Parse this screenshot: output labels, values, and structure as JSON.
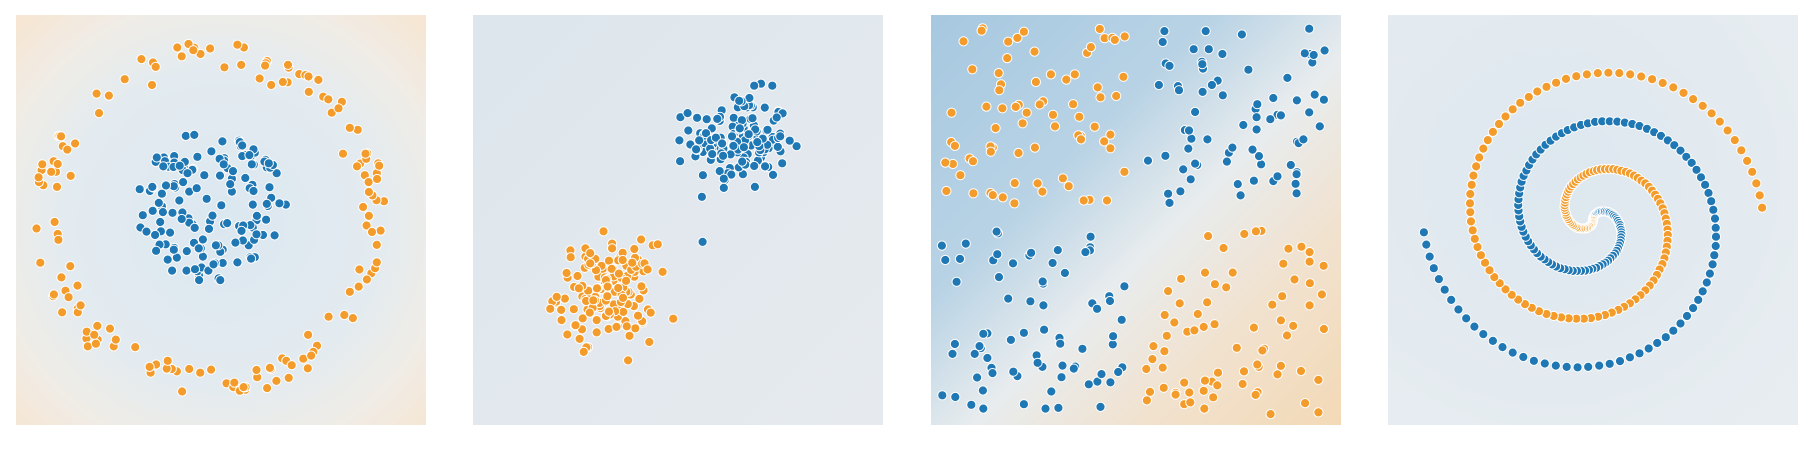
{
  "colors": {
    "class_a": "#1f77b4",
    "class_b": "#f39c2b",
    "region_a": "#a9c9e0",
    "region_b": "#f3d9b8",
    "region_neutral": "#e8edf1"
  },
  "chart_data": [
    {
      "type": "scatter",
      "dataset": "circle",
      "xlim": [
        -6,
        6
      ],
      "ylim": [
        -6,
        6
      ],
      "grid": false,
      "legend": "none",
      "series": [
        {
          "color": "#1f77b4",
          "points": []
        },
        {
          "color": "#f39c2b",
          "points": []
        }
      ]
    },
    {
      "type": "scatter",
      "dataset": "gaussian",
      "xlim": [
        -6,
        6
      ],
      "ylim": [
        -6,
        6
      ],
      "grid": false,
      "legend": "none",
      "series": [
        {
          "color": "#1f77b4",
          "points": []
        },
        {
          "color": "#f39c2b",
          "points": []
        }
      ]
    },
    {
      "type": "scatter",
      "dataset": "xor",
      "xlim": [
        -6,
        6
      ],
      "ylim": [
        -6,
        6
      ],
      "grid": false,
      "legend": "none",
      "series": [
        {
          "color": "#1f77b4",
          "points": []
        },
        {
          "color": "#f39c2b",
          "points": []
        }
      ]
    },
    {
      "type": "scatter",
      "dataset": "spiral",
      "xlim": [
        -6,
        6
      ],
      "ylim": [
        -6,
        6
      ],
      "grid": false,
      "legend": "none",
      "series": [
        {
          "color": "#1f77b4",
          "points": []
        },
        {
          "color": "#f39c2b",
          "points": []
        }
      ]
    }
  ]
}
